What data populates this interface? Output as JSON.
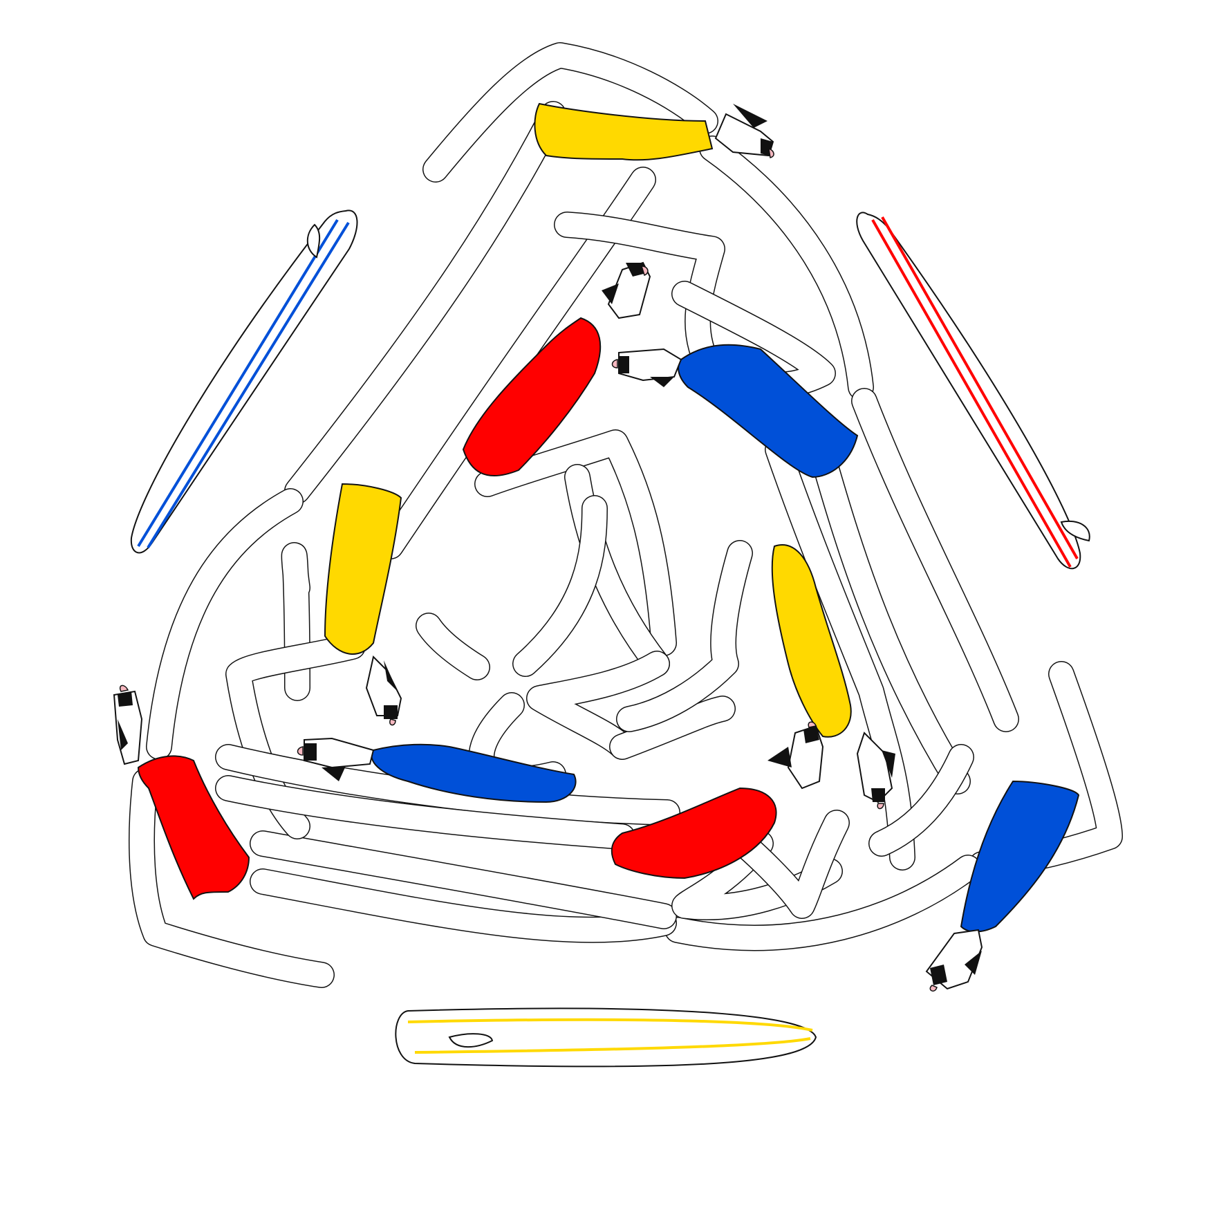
{
  "image": {
    "background": "#ffffff",
    "palette": {
      "red": "#ff0000",
      "blue": "#0050d8",
      "yellow": "#ffd900",
      "outline": "#111111",
      "skin": "#ffffff",
      "ear_pink": "#f6b8c0"
    }
  },
  "surfboards": [
    {
      "name": "blue-striped-surfboard",
      "stripe": "blue"
    },
    {
      "name": "red-striped-surfboard",
      "stripe": "red"
    },
    {
      "name": "yellow-striped-surfboard",
      "stripe": "yellow"
    }
  ],
  "figures": [
    {
      "name": "cat-swimmer-yellow-top",
      "suit": "yellow"
    },
    {
      "name": "cat-swimmer-blue-right",
      "suit": "blue"
    },
    {
      "name": "cat-swimmer-red-center",
      "suit": "red"
    },
    {
      "name": "cat-swimmer-yellow-left",
      "suit": "yellow"
    },
    {
      "name": "cat-swimmer-yellow-right",
      "suit": "yellow"
    },
    {
      "name": "cat-swimmer-blue-center",
      "suit": "blue"
    },
    {
      "name": "cat-swimmer-red-left",
      "suit": "red"
    },
    {
      "name": "cat-swimmer-red-bottom",
      "suit": "red"
    },
    {
      "name": "cat-swimmer-blue-bottom-right",
      "suit": "blue"
    }
  ]
}
